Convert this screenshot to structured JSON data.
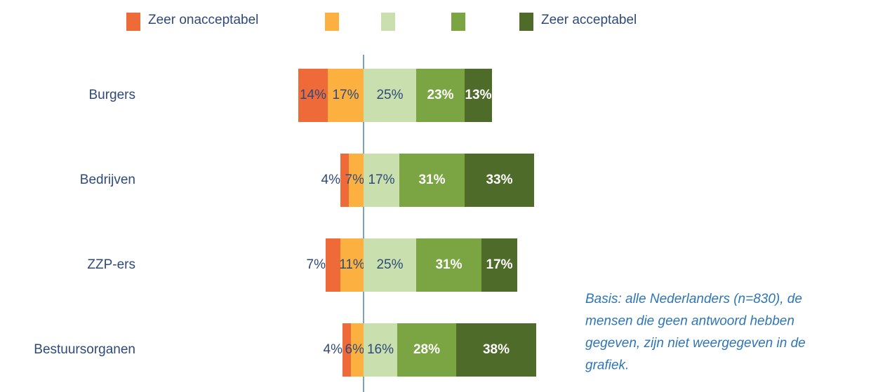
{
  "chart_data": {
    "type": "diverging_bar",
    "categories": [
      "Burgers",
      "Bedrijven",
      "ZZP-ers",
      "Bestuursorganen"
    ],
    "series": [
      {
        "name": "Zeer onacceptabel",
        "color": "#ef6a39",
        "label_color": "#2e4a7a",
        "values": [
          14,
          4,
          7,
          4
        ],
        "value_labels": [
          "14%",
          "4%",
          "7%",
          "4%"
        ]
      },
      {
        "color": "#fbb040",
        "label_color": "#2e4a7a",
        "values": [
          17,
          7,
          11,
          6
        ],
        "value_labels": [
          "17%",
          "7%",
          "11%",
          "6%"
        ]
      },
      {
        "color": "#c9dfae",
        "label_color": "#2e4a7a",
        "values": [
          25,
          17,
          25,
          16
        ],
        "value_labels": [
          "25%",
          "17%",
          "25%",
          "16%"
        ]
      },
      {
        "color": "#7aa542",
        "label_color": "#ffffff",
        "values": [
          23,
          31,
          31,
          28
        ],
        "value_labels": [
          "23%",
          "31%",
          "31%",
          "28%"
        ]
      },
      {
        "name": "Zeer acceptabel",
        "color": "#4f6b2a",
        "label_color": "#ffffff",
        "values": [
          13,
          33,
          17,
          38
        ],
        "value_labels": [
          "13%",
          "33%",
          "17%",
          "38%"
        ]
      }
    ],
    "annotation": [
      "Basis: alle Nederlanders (n=830), de",
      "mensen die geen antwoord hebben",
      "gegeven, zijn niet weergegeven in de",
      "grafiek."
    ]
  }
}
